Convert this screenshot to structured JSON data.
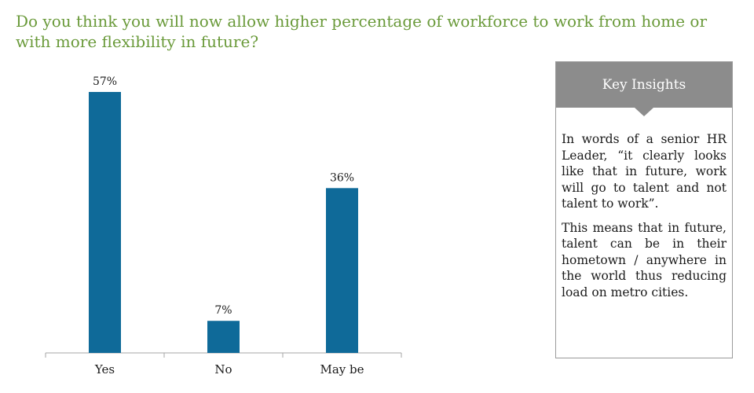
{
  "question": "Do you think you will now allow higher percentage of workforce to work from home or with more flexibility in future?",
  "chart_data": {
    "type": "bar",
    "categories": [
      "Yes",
      "No",
      "May be"
    ],
    "values": [
      57,
      7,
      36
    ],
    "value_labels": [
      "57%",
      "7%",
      "36%"
    ],
    "unit": "%",
    "ylim": [
      0,
      57
    ],
    "grid": false,
    "legend": "none",
    "bar_color": "#0f6a99",
    "axis_color": "#a6a6a6"
  },
  "insights": {
    "title": "Key Insights",
    "paragraphs": [
      "In words of a senior HR Leader, “it clearly looks like that in future, work will go to talent and not talent to work”.",
      "This means that in future, talent can be in their hometown / anywhere in the world thus reducing load on metro cities."
    ],
    "header_color": "#8c8c8c"
  },
  "colors": {
    "question_text": "#6a9a3a"
  }
}
